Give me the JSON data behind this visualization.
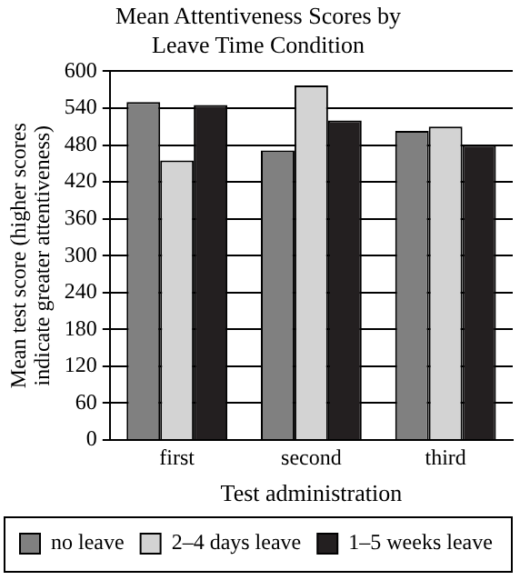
{
  "chart_data": {
    "type": "bar",
    "title": [
      "Mean Attentiveness Scores by",
      "Leave Time Condition"
    ],
    "xlabel": "Test administration",
    "ylabel": [
      "Mean test score (higher scores",
      "indicate greater attentiveness)"
    ],
    "categories": [
      "first",
      "second",
      "third"
    ],
    "series": [
      {
        "name": "no leave",
        "color": "#808080",
        "values": [
          550,
          471,
          503
        ]
      },
      {
        "name": "2–4 days leave",
        "color": "#d3d3d3",
        "values": [
          455,
          577,
          510
        ]
      },
      {
        "name": "1–5 weeks leave",
        "color": "#231f20",
        "values": [
          545,
          520,
          480
        ]
      }
    ],
    "ylim": [
      0,
      600
    ],
    "yticks": [
      0,
      60,
      120,
      180,
      240,
      300,
      360,
      420,
      480,
      540,
      600
    ],
    "grid": "y",
    "legend": "bottom"
  }
}
